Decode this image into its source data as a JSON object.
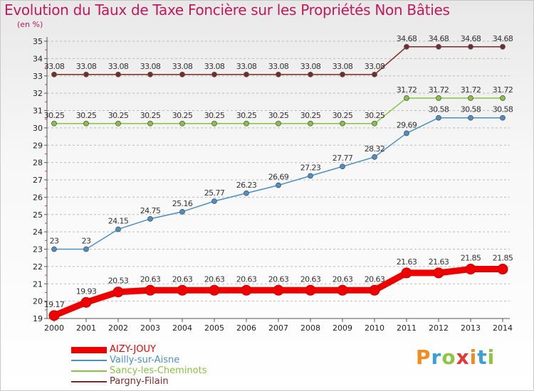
{
  "header": {
    "title": "Evolution du Taux de Taxe Foncière sur les Propriétés Non Bâties",
    "unit": "(en %)"
  },
  "logo": {
    "text": "Proxiti",
    "colors": [
      "#f28c1e",
      "#3aa0d8",
      "#8cc63f",
      "#e53935",
      "#f28c1e",
      "#3aa0d8",
      "#8cc63f"
    ]
  },
  "colors": {
    "title": "#c2185b",
    "axis": "#555555",
    "grid": "#bbbbbb"
  },
  "chart_data": {
    "type": "line",
    "title": "Evolution du Taux de Taxe Foncière sur les Propriétés Non Bâties",
    "ylabel": "(en %)",
    "xlabel": "",
    "x": [
      2000,
      2001,
      2002,
      2003,
      2004,
      2005,
      2006,
      2007,
      2008,
      2009,
      2010,
      2011,
      2012,
      2013,
      2014
    ],
    "ylim": [
      19,
      35
    ],
    "yticks": [
      19,
      20,
      21,
      22,
      23,
      24,
      25,
      26,
      27,
      28,
      29,
      30,
      31,
      32,
      33,
      34,
      35
    ],
    "grid": "horizontal dashed",
    "legend_position": "bottom-left",
    "series": [
      {
        "name": "AIZY-JOUY",
        "color": "#ee0000",
        "emphasis": "thick",
        "values": [
          19.17,
          19.93,
          20.53,
          20.63,
          20.63,
          20.63,
          20.63,
          20.63,
          20.63,
          20.63,
          20.63,
          21.63,
          21.63,
          21.85,
          21.85
        ],
        "labels": [
          "19.17",
          "19.93",
          "20.53",
          "20.63",
          "20.63",
          "20.63",
          "20.63",
          "20.63",
          "20.63",
          "20.63",
          "20.63",
          "21.63",
          "21.63",
          "21.85",
          "21.85"
        ]
      },
      {
        "name": "Vailly-sur-Aisne",
        "color": "#4a90c8",
        "emphasis": "thin",
        "values": [
          23,
          23,
          24.15,
          24.75,
          25.16,
          25.77,
          26.23,
          26.69,
          27.23,
          27.77,
          28.32,
          29.69,
          30.58,
          30.58,
          30.58
        ],
        "labels": [
          "23",
          "23",
          "24.15",
          "24.75",
          "25.16",
          "25.77",
          "26.23",
          "26.69",
          "27.23",
          "27.77",
          "28.32",
          "29.69",
          "30.58",
          "30.58",
          "30.58"
        ]
      },
      {
        "name": "Sancy-les-Cheminots",
        "color": "#86c440",
        "emphasis": "thin",
        "values": [
          30.25,
          30.25,
          30.25,
          30.25,
          30.25,
          30.25,
          30.25,
          30.25,
          30.25,
          30.25,
          30.25,
          31.72,
          31.72,
          31.72,
          31.72
        ],
        "labels": [
          "30.25",
          "30.25",
          "30.25",
          "30.25",
          "30.25",
          "30.25",
          "30.25",
          "30.25",
          "30.25",
          "30.25",
          "30.25",
          "31.72",
          "31.72",
          "31.72",
          "31.72"
        ]
      },
      {
        "name": "Pargny-Filain",
        "color": "#7b2a2a",
        "emphasis": "thin",
        "values": [
          33.08,
          33.08,
          33.08,
          33.08,
          33.08,
          33.08,
          33.08,
          33.08,
          33.08,
          33.08,
          33.08,
          34.68,
          34.68,
          34.68,
          34.68
        ],
        "labels": [
          "33.08",
          "33.08",
          "33.08",
          "33.08",
          "33.08",
          "33.08",
          "33.08",
          "33.08",
          "33.08",
          "33.08",
          "33.08",
          "34.68",
          "34.68",
          "34.68",
          "34.68"
        ]
      }
    ]
  }
}
